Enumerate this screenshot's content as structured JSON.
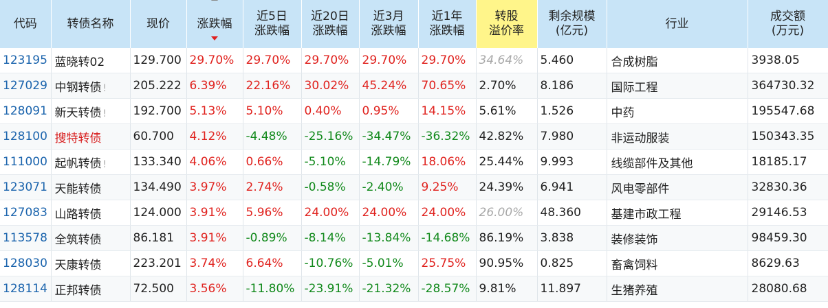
{
  "headers": [
    {
      "line1": "代码",
      "line2": ""
    },
    {
      "line1": "转债名称",
      "line2": ""
    },
    {
      "line1": "现价",
      "line2": ""
    },
    {
      "line1": "涨跌幅",
      "line2": ""
    },
    {
      "line1": "近5日",
      "line2": "涨跌幅"
    },
    {
      "line1": "近20日",
      "line2": "涨跌幅"
    },
    {
      "line1": "近3月",
      "line2": "涨跌幅"
    },
    {
      "line1": "近1年",
      "line2": "涨跌幅"
    },
    {
      "line1": "转股",
      "line2": "溢价率"
    },
    {
      "line1": "剩余规模",
      "line2": "(亿元)"
    },
    {
      "line1": "行业",
      "line2": ""
    },
    {
      "line1": "成交额",
      "line2": "(万元)"
    }
  ],
  "warn_mark": "!",
  "colors": {
    "header_bg": "#c8e4f7",
    "highlight_header_bg": "#fff58a",
    "up": "#e0221e",
    "down": "#11891b",
    "code": "#1b64ad"
  },
  "rows": [
    {
      "code": "123195",
      "name": "蓝晓转02",
      "name_red": false,
      "warn": false,
      "price": "129.700",
      "chg": "29.70%",
      "chg_dir": "up",
      "d5": "29.70%",
      "d5_dir": "up",
      "d20": "29.70%",
      "d20_dir": "up",
      "m3": "29.70%",
      "m3_dir": "up",
      "y1": "29.70%",
      "y1_dir": "up",
      "premium": "34.64%",
      "premium_italic": true,
      "remain": "5.460",
      "industry": "合成树脂",
      "amount": "3938.05"
    },
    {
      "code": "127029",
      "name": "中钢转债",
      "name_red": false,
      "warn": true,
      "price": "205.222",
      "chg": "6.39%",
      "chg_dir": "up",
      "d5": "22.16%",
      "d5_dir": "up",
      "d20": "30.02%",
      "d20_dir": "up",
      "m3": "45.24%",
      "m3_dir": "up",
      "y1": "70.65%",
      "y1_dir": "up",
      "premium": "2.70%",
      "premium_italic": false,
      "remain": "8.186",
      "industry": "国际工程",
      "amount": "364730.32"
    },
    {
      "code": "128091",
      "name": "新天转债",
      "name_red": false,
      "warn": true,
      "price": "192.700",
      "chg": "5.13%",
      "chg_dir": "up",
      "d5": "5.10%",
      "d5_dir": "up",
      "d20": "0.40%",
      "d20_dir": "up",
      "m3": "0.95%",
      "m3_dir": "up",
      "y1": "14.15%",
      "y1_dir": "up",
      "premium": "5.61%",
      "premium_italic": false,
      "remain": "1.526",
      "industry": "中药",
      "amount": "195547.68"
    },
    {
      "code": "128100",
      "name": "搜特转债",
      "name_red": true,
      "warn": false,
      "price": "60.700",
      "chg": "4.12%",
      "chg_dir": "up",
      "d5": "-4.48%",
      "d5_dir": "down",
      "d20": "-25.16%",
      "d20_dir": "down",
      "m3": "-34.47%",
      "m3_dir": "down",
      "y1": "-36.32%",
      "y1_dir": "down",
      "premium": "42.82%",
      "premium_italic": false,
      "remain": "7.980",
      "industry": "非运动服装",
      "amount": "150343.35"
    },
    {
      "code": "111000",
      "name": "起帆转债",
      "name_red": false,
      "warn": true,
      "price": "133.340",
      "chg": "4.06%",
      "chg_dir": "up",
      "d5": "0.66%",
      "d5_dir": "up",
      "d20": "-5.10%",
      "d20_dir": "down",
      "m3": "-14.79%",
      "m3_dir": "down",
      "y1": "18.06%",
      "y1_dir": "up",
      "premium": "25.44%",
      "premium_italic": false,
      "remain": "9.993",
      "industry": "线缆部件及其他",
      "amount": "18185.17"
    },
    {
      "code": "123071",
      "name": "天能转债",
      "name_red": false,
      "warn": false,
      "price": "134.490",
      "chg": "3.97%",
      "chg_dir": "up",
      "d5": "2.74%",
      "d5_dir": "up",
      "d20": "-0.58%",
      "d20_dir": "down",
      "m3": "-2.40%",
      "m3_dir": "down",
      "y1": "9.25%",
      "y1_dir": "up",
      "premium": "24.39%",
      "premium_italic": false,
      "remain": "6.941",
      "industry": "风电零部件",
      "amount": "32830.36"
    },
    {
      "code": "127083",
      "name": "山路转债",
      "name_red": false,
      "warn": false,
      "price": "124.000",
      "chg": "3.91%",
      "chg_dir": "up",
      "d5": "5.96%",
      "d5_dir": "up",
      "d20": "24.00%",
      "d20_dir": "up",
      "m3": "24.00%",
      "m3_dir": "up",
      "y1": "24.00%",
      "y1_dir": "up",
      "premium": "26.00%",
      "premium_italic": true,
      "remain": "48.360",
      "industry": "基建市政工程",
      "amount": "29146.53"
    },
    {
      "code": "113578",
      "name": "全筑转债",
      "name_red": false,
      "warn": false,
      "price": "86.181",
      "chg": "3.91%",
      "chg_dir": "up",
      "d5": "-0.89%",
      "d5_dir": "down",
      "d20": "-8.14%",
      "d20_dir": "down",
      "m3": "-13.84%",
      "m3_dir": "down",
      "y1": "-14.68%",
      "y1_dir": "down",
      "premium": "86.19%",
      "premium_italic": false,
      "remain": "3.838",
      "industry": "装修装饰",
      "amount": "98459.30"
    },
    {
      "code": "128030",
      "name": "天康转债",
      "name_red": false,
      "warn": false,
      "price": "223.201",
      "chg": "3.74%",
      "chg_dir": "up",
      "d5": "6.64%",
      "d5_dir": "up",
      "d20": "-10.76%",
      "d20_dir": "down",
      "m3": "-5.01%",
      "m3_dir": "down",
      "y1": "25.75%",
      "y1_dir": "up",
      "premium": "90.95%",
      "premium_italic": false,
      "remain": "0.825",
      "industry": "畜禽饲料",
      "amount": "8629.63"
    },
    {
      "code": "128114",
      "name": "正邦转债",
      "name_red": false,
      "warn": false,
      "price": "72.500",
      "chg": "3.56%",
      "chg_dir": "up",
      "d5": "-11.80%",
      "d5_dir": "down",
      "d20": "-23.91%",
      "d20_dir": "down",
      "m3": "-21.32%",
      "m3_dir": "down",
      "y1": "-28.57%",
      "y1_dir": "down",
      "premium": "9.81%",
      "premium_italic": false,
      "remain": "11.897",
      "industry": "生猪养殖",
      "amount": "28080.68"
    }
  ]
}
